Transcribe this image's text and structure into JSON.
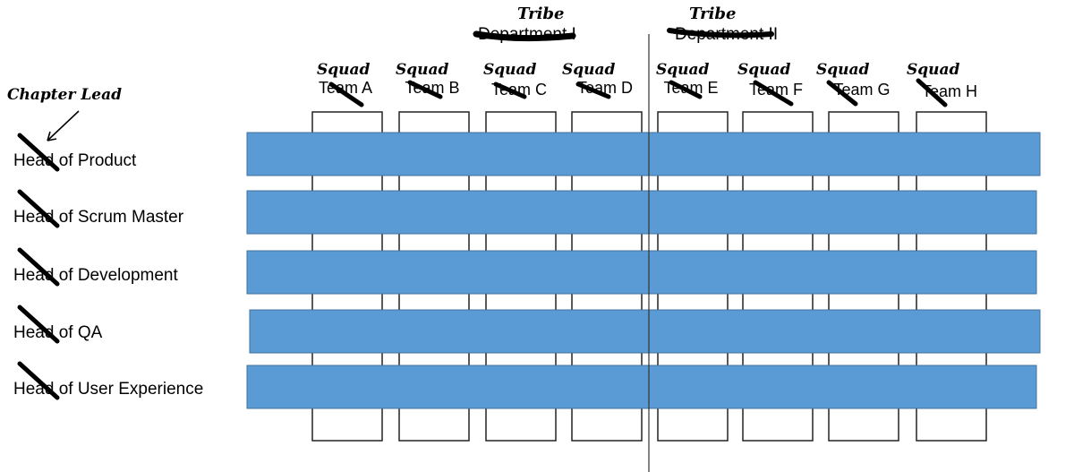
{
  "colors": {
    "bar_fill": "#5b9bd5",
    "bar_stroke": "#41719c",
    "ink": "#000000",
    "box_stroke": "#222222"
  },
  "departments": [
    {
      "label": "Department I",
      "annotation": "Tribe"
    },
    {
      "label": "Department II",
      "annotation": "Tribe"
    }
  ],
  "teams": [
    {
      "label": "Team A",
      "annotation": "Squad"
    },
    {
      "label": "Team B",
      "annotation": "Squad"
    },
    {
      "label": "Team C",
      "annotation": "Squad"
    },
    {
      "label": "Team D",
      "annotation": "Squad"
    },
    {
      "label": "Team E",
      "annotation": "Squad"
    },
    {
      "label": "Team F",
      "annotation": "Squad"
    },
    {
      "label": "Team G",
      "annotation": "Squad"
    },
    {
      "label": "Team H",
      "annotation": "Squad"
    }
  ],
  "chapter_annotation": "Chapter Lead",
  "chapters": [
    {
      "label": "Head of Product"
    },
    {
      "label": "Head of Scrum Master"
    },
    {
      "label": "Head of Development"
    },
    {
      "label": "Head of QA"
    },
    {
      "label": "Head of User Experience"
    }
  ]
}
